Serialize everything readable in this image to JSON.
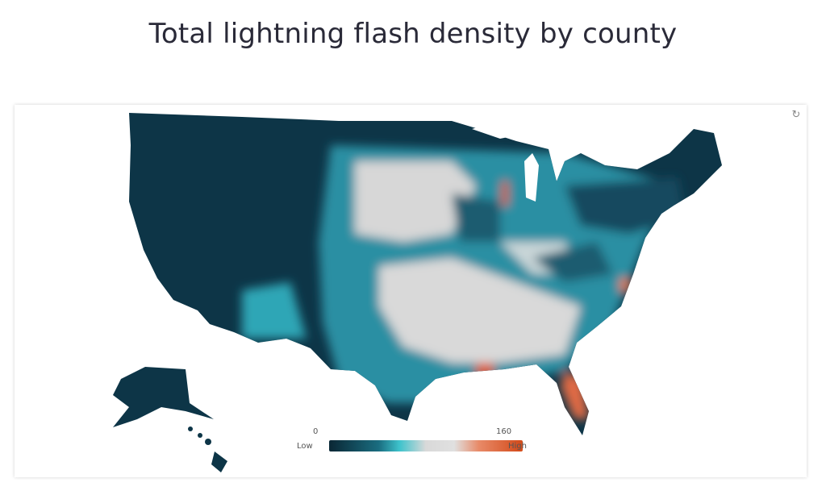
{
  "title": "Total lightning flash density by county",
  "map": {
    "refresh_icon": "refresh-icon",
    "colors": {
      "low": "#0b2a38",
      "mid_teal": "#3ec3cc",
      "neutral": "#dcdcdc",
      "high": "#d44c1c"
    },
    "legend": {
      "min": "0",
      "max": "160",
      "low_label": "Low",
      "high_label": "High"
    }
  }
}
